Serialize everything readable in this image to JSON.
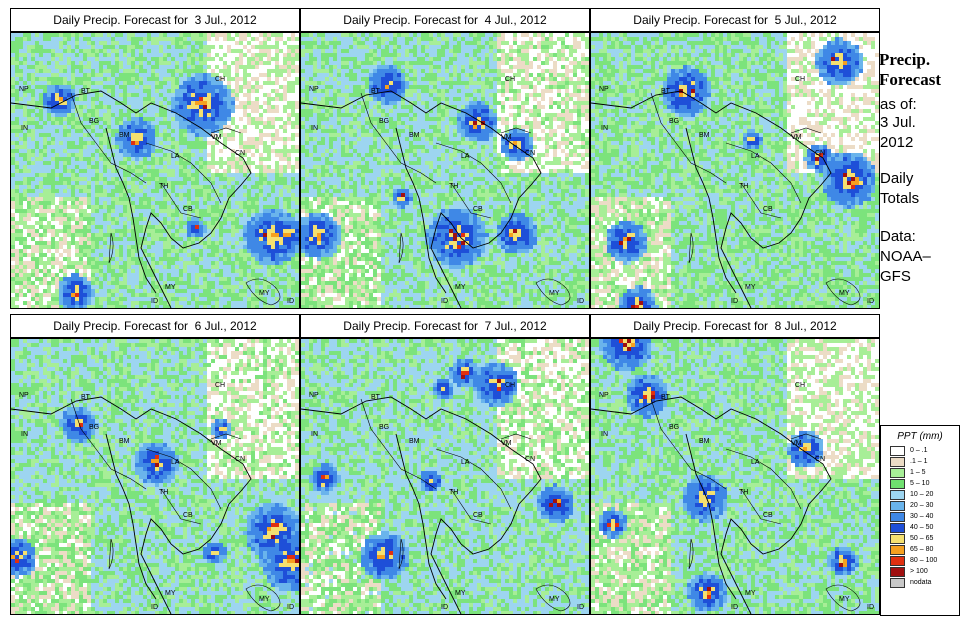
{
  "panels": [
    {
      "title": "Daily Precip. Forecast for  3 Jul., 2012",
      "seed": 3,
      "wet": 0.45
    },
    {
      "title": "Daily Precip. Forecast for  4 Jul., 2012",
      "seed": 4,
      "wet": 0.5
    },
    {
      "title": "Daily Precip. Forecast for  5 Jul., 2012",
      "seed": 5,
      "wet": 0.4
    },
    {
      "title": "Daily Precip. Forecast for  6 Jul., 2012",
      "seed": 6,
      "wet": 0.5
    },
    {
      "title": "Daily Precip. Forecast for  7 Jul., 2012",
      "seed": 7,
      "wet": 0.55
    },
    {
      "title": "Daily Precip. Forecast for  8 Jul., 2012",
      "seed": 8,
      "wet": 0.45
    }
  ],
  "map_labels": {
    "np": "NP",
    "bt": "BT",
    "bg": "BG",
    "in": "IN",
    "ch": "CH",
    "bm": "BM",
    "vm": "VM",
    "la": "LA",
    "th": "TH",
    "cb": "CB",
    "my_west": "MY",
    "my_east": "MY",
    "id_west": "ID",
    "id_east": "ID",
    "cn": "CN"
  },
  "side": {
    "title_line1": "Precip.",
    "title_line2": "Forecast",
    "asof": "as of:",
    "date_line1": "3 Jul.",
    "date_line2": "2012",
    "totals_line1": "Daily",
    "totals_line2": "Totals",
    "data_line1": "Data:",
    "data_line2": "NOAA–",
    "data_line3": "GFS"
  },
  "legend": {
    "title": "PPT (mm)",
    "items": [
      {
        "label": "0 – .1",
        "color": "#ffffff"
      },
      {
        "label": ".1 – 1",
        "color": "#ecdcc6"
      },
      {
        "label": "1 – 5",
        "color": "#a7ee97"
      },
      {
        "label": "5 – 10",
        "color": "#6fdf6f"
      },
      {
        "label": "10 – 20",
        "color": "#9dd5f0"
      },
      {
        "label": "20 – 30",
        "color": "#6ab4ec"
      },
      {
        "label": "30 – 40",
        "color": "#3f88e6"
      },
      {
        "label": "40 – 50",
        "color": "#1e4fd8"
      },
      {
        "label": "50 – 65",
        "color": "#f5e070"
      },
      {
        "label": "65 – 80",
        "color": "#f5a020"
      },
      {
        "label": "80 – 100",
        "color": "#e03010"
      },
      {
        "label": "> 100",
        "color": "#a01010"
      },
      {
        "label": "nodata",
        "color": "#c8c8c8"
      }
    ]
  }
}
